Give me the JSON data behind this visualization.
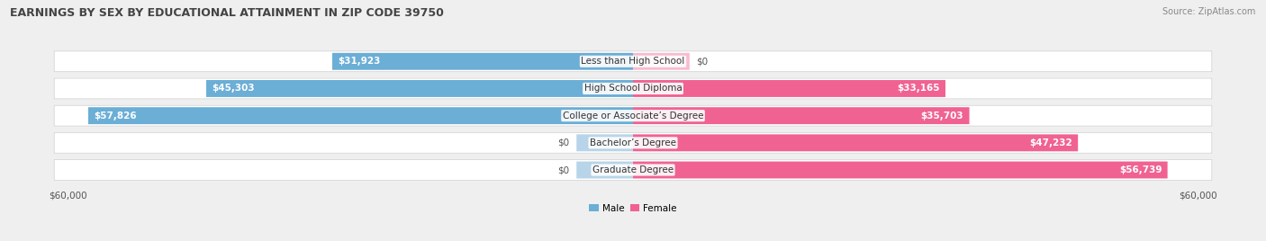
{
  "title": "EARNINGS BY SEX BY EDUCATIONAL ATTAINMENT IN ZIP CODE 39750",
  "source": "Source: ZipAtlas.com",
  "categories": [
    "Less than High School",
    "High School Diploma",
    "College or Associate’s Degree",
    "Bachelor’s Degree",
    "Graduate Degree"
  ],
  "male_values": [
    31923,
    45303,
    57826,
    0,
    0
  ],
  "female_values": [
    0,
    33165,
    35703,
    47232,
    56739
  ],
  "male_color": "#6baed6",
  "female_color": "#f06292",
  "male_color_light": "#b8d4e8",
  "female_color_light": "#f8bbd0",
  "max_value": 60000,
  "bg_color": "#efefef",
  "row_bg_color": "#ffffff",
  "row_edge_color": "#d0d0d0",
  "title_fontsize": 9,
  "source_fontsize": 7,
  "label_fontsize": 7.5,
  "category_fontsize": 7.5,
  "axis_label_fontsize": 7.5,
  "bar_height": 0.62,
  "title_color": "#444444",
  "label_color_dark": "#555555",
  "label_color_white": "#ffffff"
}
